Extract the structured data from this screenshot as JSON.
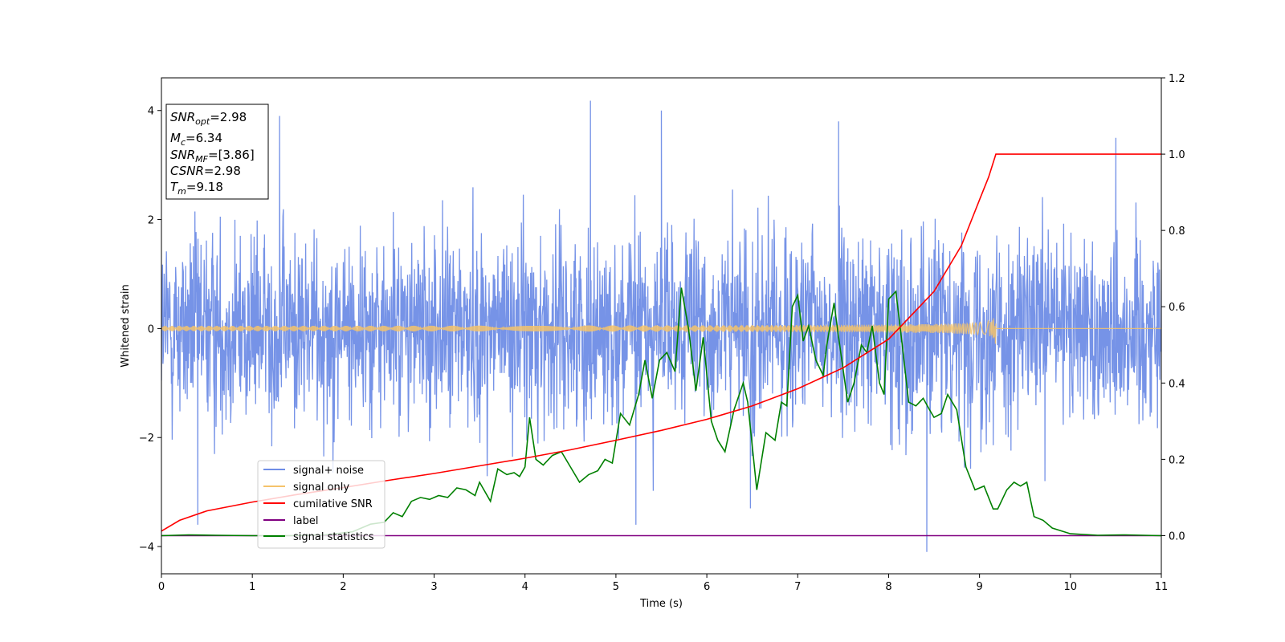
{
  "chart_data": {
    "type": "line",
    "title": "",
    "xlabel": "Time (s)",
    "ylabel": "Whitened strain",
    "xlim": [
      0,
      11
    ],
    "ylim_left": [
      -4.5,
      4.6
    ],
    "ylim_right": [
      -0.1,
      1.2
    ],
    "x_ticks": [
      0,
      1,
      2,
      3,
      4,
      5,
      6,
      7,
      8,
      9,
      10,
      11
    ],
    "y_ticks_left": [
      -4,
      -2,
      0,
      2,
      4
    ],
    "y_ticks_left_labels": [
      "−4",
      "−2",
      "0",
      "2",
      "4"
    ],
    "y_ticks_right": [
      0.0,
      0.2,
      0.4,
      0.6,
      0.8,
      1.0,
      1.2
    ],
    "y_ticks_right_labels": [
      "0.0",
      "0.2",
      "0.4",
      "0.6",
      "0.8",
      "1.0",
      "1.2"
    ],
    "grid": false,
    "legend_position": "lower-left",
    "info_box": [
      {
        "base": "SNR",
        "sub": "opt",
        "rest": "=2.98"
      },
      {
        "base": "M",
        "sub": "c",
        "rest": "=6.34"
      },
      {
        "base": "SNR",
        "sub": "MF",
        "rest": "=[3.86]"
      },
      {
        "base": "CSNR",
        "sub": "",
        "rest": "=2.98"
      },
      {
        "base": "T",
        "sub": "m",
        "rest": "=9.18"
      }
    ],
    "series": [
      {
        "name": "signal+ noise",
        "axis": "left",
        "color": "#6f8de6",
        "description_values": "noise band",
        "noise_sigma": 1.0,
        "x_range": [
          0,
          11
        ],
        "extreme_points": [
          {
            "x": 1.3,
            "y": 3.9
          },
          {
            "x": 4.72,
            "y": 4.18
          },
          {
            "x": 5.5,
            "y": 4.0
          },
          {
            "x": 7.45,
            "y": 3.8
          },
          {
            "x": 8.42,
            "y": -4.1
          },
          {
            "x": 5.22,
            "y": -3.6
          },
          {
            "x": 0.4,
            "y": -3.6
          },
          {
            "x": 10.5,
            "y": 3.5
          },
          {
            "x": 6.48,
            "y": -3.3
          },
          {
            "x": 9.72,
            "y": -2.8
          }
        ]
      },
      {
        "name": "signal only",
        "axis": "left",
        "color": "#f5c36b",
        "chirp_end": 9.18,
        "chirp_amplitude_end": 0.35
      },
      {
        "name": "cumilative SNR",
        "axis": "right",
        "color": "#ff0000",
        "x": [
          0,
          0.2,
          0.5,
          1,
          1.5,
          2,
          2.5,
          3,
          3.5,
          4,
          4.5,
          5,
          5.5,
          6,
          6.5,
          7,
          7.5,
          8,
          8.5,
          8.8,
          9.0,
          9.1,
          9.18,
          9.5,
          10,
          10.5,
          11
        ],
        "values": [
          0.012,
          0.04,
          0.065,
          0.088,
          0.108,
          0.126,
          0.145,
          0.163,
          0.183,
          0.203,
          0.225,
          0.25,
          0.276,
          0.305,
          0.34,
          0.385,
          0.44,
          0.515,
          0.64,
          0.76,
          0.88,
          0.94,
          1.0,
          1.0,
          1.0,
          1.0,
          1.0
        ]
      },
      {
        "name": "label",
        "axis": "right",
        "color": "#800080",
        "x": [
          0,
          11
        ],
        "values": [
          0.0,
          0.0
        ]
      },
      {
        "name": "signal statistics",
        "axis": "right",
        "color": "#008000",
        "x": [
          0,
          0.3,
          0.6,
          1.0,
          1.4,
          1.8,
          2.1,
          2.3,
          2.45,
          2.55,
          2.65,
          2.75,
          2.85,
          2.95,
          3.05,
          3.15,
          3.25,
          3.35,
          3.45,
          3.5,
          3.62,
          3.7,
          3.8,
          3.88,
          3.94,
          4.0,
          4.05,
          4.12,
          4.2,
          4.3,
          4.4,
          4.5,
          4.6,
          4.7,
          4.8,
          4.88,
          4.96,
          5.05,
          5.15,
          5.25,
          5.32,
          5.4,
          5.48,
          5.56,
          5.65,
          5.72,
          5.8,
          5.88,
          5.96,
          6.05,
          6.12,
          6.2,
          6.3,
          6.4,
          6.45,
          6.55,
          6.65,
          6.75,
          6.82,
          6.88,
          6.94,
          7.0,
          7.06,
          7.12,
          7.2,
          7.28,
          7.32,
          7.4,
          7.45,
          7.55,
          7.62,
          7.7,
          7.76,
          7.82,
          7.9,
          7.95,
          8.0,
          8.08,
          8.15,
          8.22,
          8.3,
          8.38,
          8.45,
          8.5,
          8.58,
          8.65,
          8.75,
          8.85,
          8.95,
          9.05,
          9.15,
          9.2,
          9.3,
          9.38,
          9.45,
          9.52,
          9.6,
          9.7,
          9.8,
          10.0,
          10.3,
          10.6,
          11.0
        ],
        "values": [
          0.0,
          0.002,
          0.001,
          0.0,
          0.0,
          0.002,
          0.01,
          0.03,
          0.035,
          0.06,
          0.05,
          0.09,
          0.1,
          0.095,
          0.105,
          0.1,
          0.125,
          0.12,
          0.105,
          0.14,
          0.09,
          0.175,
          0.16,
          0.165,
          0.155,
          0.18,
          0.31,
          0.2,
          0.185,
          0.21,
          0.22,
          0.18,
          0.14,
          0.16,
          0.17,
          0.2,
          0.19,
          0.32,
          0.29,
          0.37,
          0.46,
          0.36,
          0.46,
          0.48,
          0.43,
          0.65,
          0.54,
          0.38,
          0.52,
          0.3,
          0.25,
          0.22,
          0.33,
          0.4,
          0.35,
          0.12,
          0.27,
          0.25,
          0.35,
          0.34,
          0.6,
          0.63,
          0.51,
          0.55,
          0.46,
          0.42,
          0.5,
          0.61,
          0.52,
          0.35,
          0.4,
          0.5,
          0.48,
          0.55,
          0.4,
          0.37,
          0.62,
          0.64,
          0.5,
          0.35,
          0.34,
          0.36,
          0.33,
          0.31,
          0.32,
          0.37,
          0.33,
          0.18,
          0.12,
          0.13,
          0.07,
          0.07,
          0.12,
          0.14,
          0.13,
          0.14,
          0.05,
          0.04,
          0.02,
          0.005,
          0.001,
          0.002,
          0.0
        ]
      }
    ]
  }
}
